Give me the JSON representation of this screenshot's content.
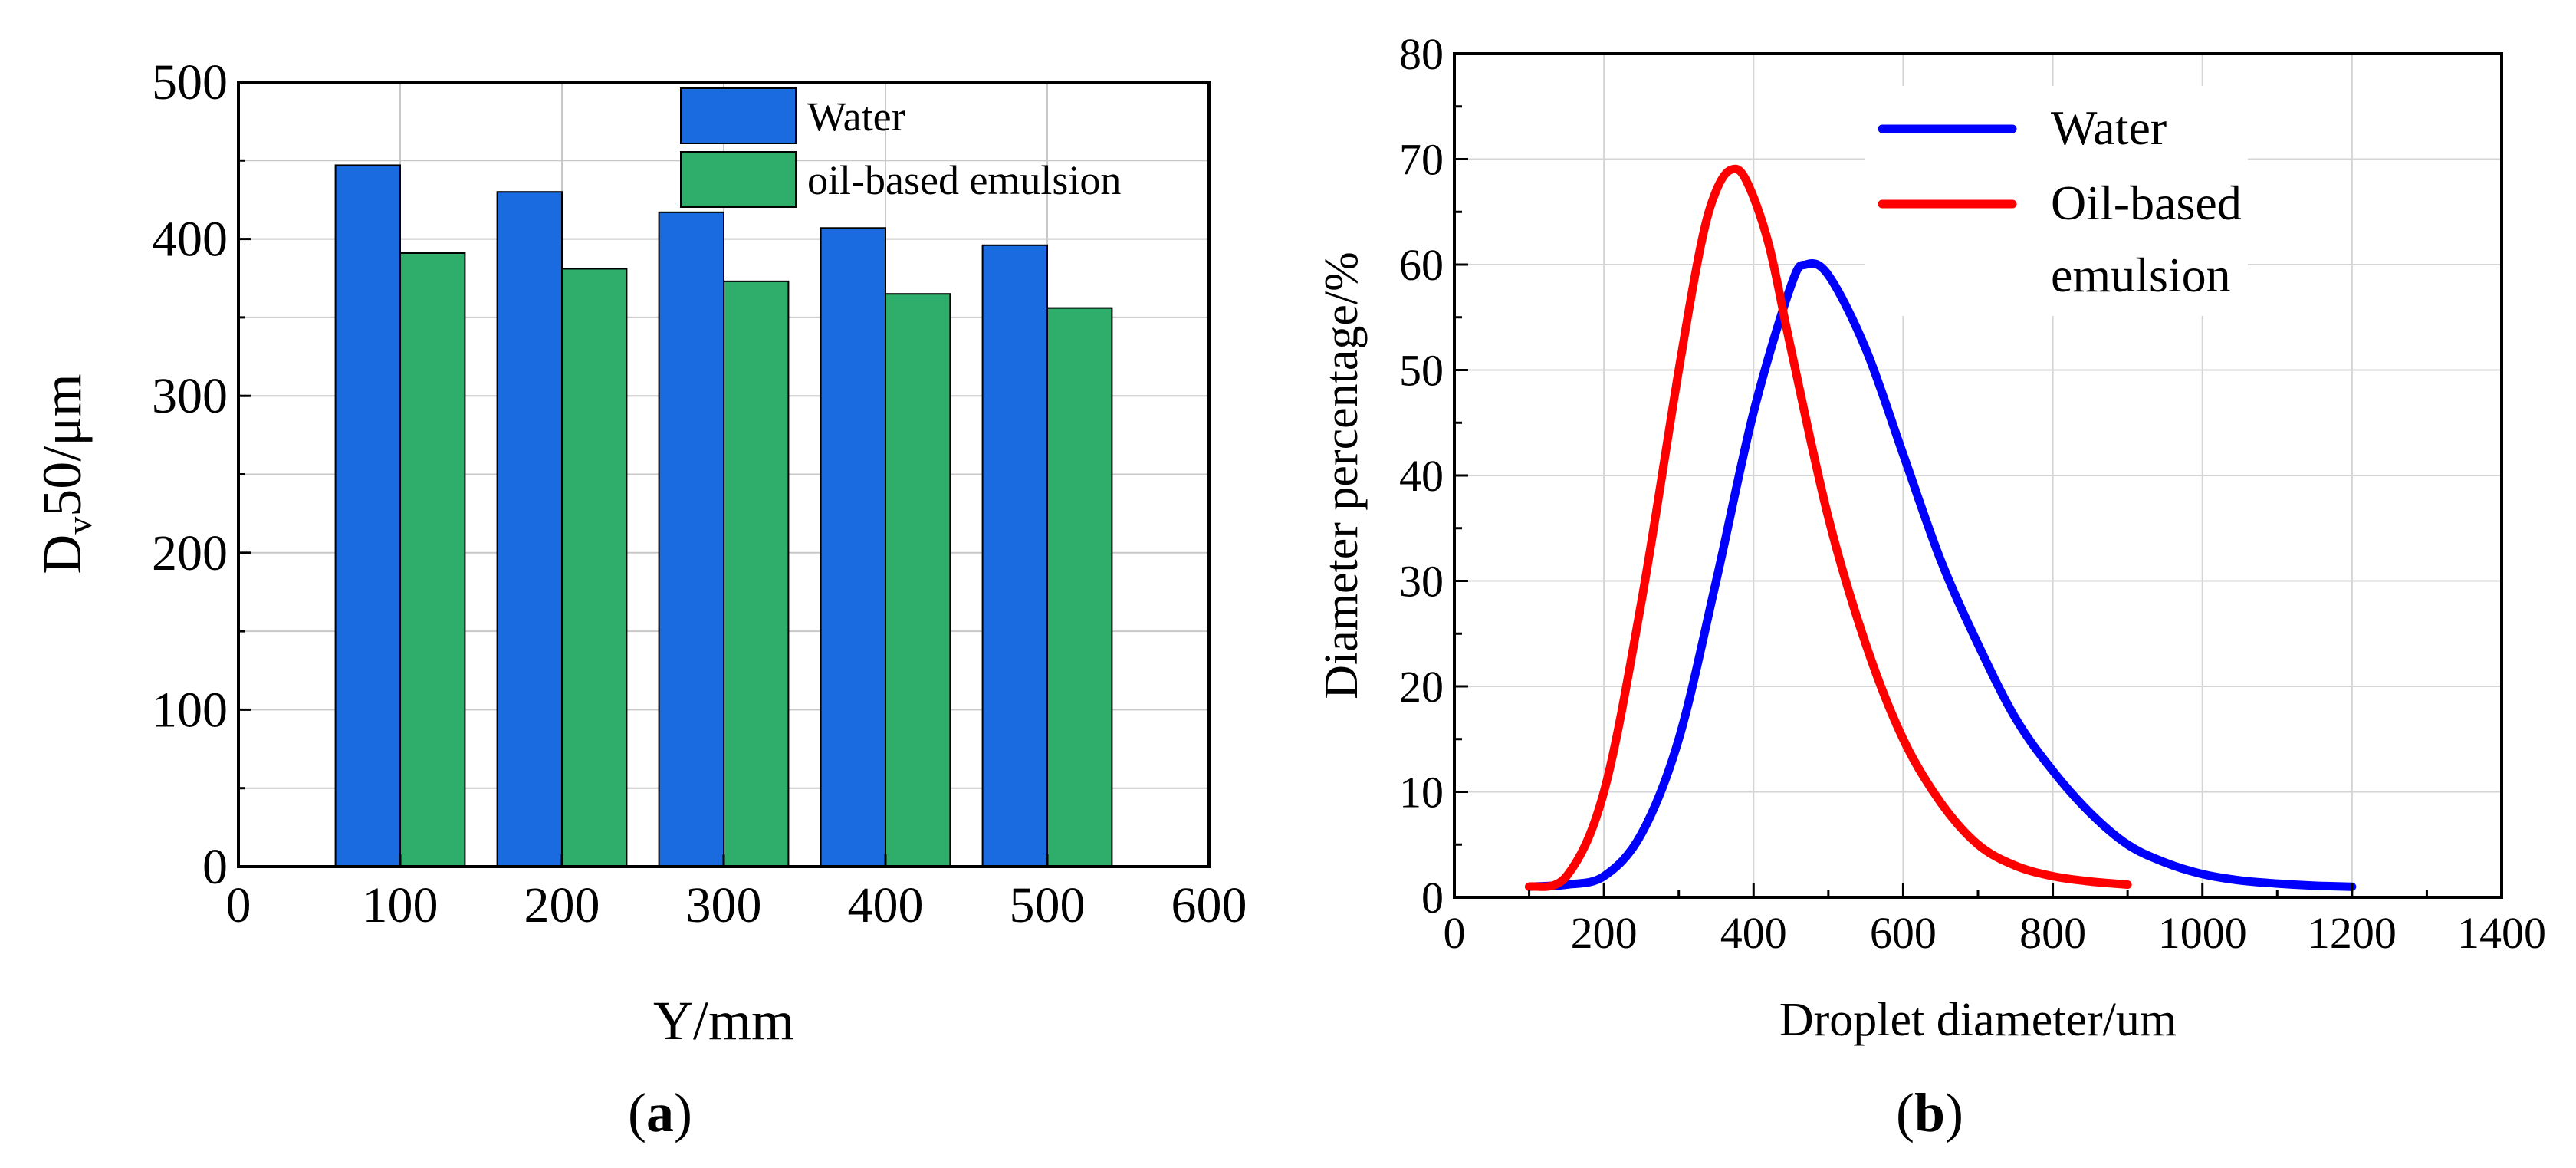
{
  "chart_data": [
    {
      "type": "bar",
      "panel_label": "a",
      "title": "",
      "xlabel": "Y/mm",
      "ylabel_main": "D",
      "ylabel_sub": "v",
      "ylabel_rest": "50/μm",
      "xlim": [
        0,
        600
      ],
      "ylim": [
        0,
        500
      ],
      "xticks": [
        "0",
        "100",
        "200",
        "300",
        "400",
        "500",
        "600"
      ],
      "yticks": [
        "0",
        "100",
        "200",
        "300",
        "400",
        "500"
      ],
      "categories": [
        100,
        200,
        300,
        400,
        500
      ],
      "grid": true,
      "legend_position": "top-right",
      "series": [
        {
          "name": "Water",
          "color": "#1a6be0",
          "values": [
            447,
            430,
            417,
            407,
            396
          ]
        },
        {
          "name": "oil-based emulsion",
          "color": "#2fae6b",
          "values": [
            391,
            381,
            373,
            365,
            356
          ]
        }
      ]
    },
    {
      "type": "line",
      "panel_label": "b",
      "title": "",
      "xlabel": "Droplet diameter/um",
      "ylabel": "Diameter percentage/%",
      "xlim": [
        0,
        1400
      ],
      "ylim": [
        0,
        80
      ],
      "xticks": [
        "0",
        "200",
        "400",
        "600",
        "800",
        "1000",
        "1200",
        "1400"
      ],
      "yticks": [
        "0",
        "10",
        "20",
        "30",
        "40",
        "50",
        "60",
        "70",
        "80"
      ],
      "grid": true,
      "legend_position": "top-right",
      "series": [
        {
          "name": "Water",
          "color": "#0000ff",
          "x": [
            100,
            150,
            200,
            250,
            300,
            350,
            400,
            450,
            470,
            500,
            550,
            600,
            650,
            700,
            750,
            800,
            850,
            900,
            950,
            1000,
            1050,
            1100,
            1150,
            1200
          ],
          "y": [
            1,
            1.2,
            2,
            6,
            15,
            30,
            46,
            58,
            60,
            59,
            52,
            42,
            32,
            24,
            17,
            12,
            8,
            5,
            3.3,
            2.2,
            1.6,
            1.3,
            1.1,
            1
          ]
        },
        {
          "name": "Oil-based emulsion",
          "name_line1": "Oil-based",
          "name_line2": "emulsion",
          "color": "#ff0000",
          "x": [
            100,
            150,
            200,
            250,
            300,
            330,
            350,
            370,
            390,
            420,
            450,
            500,
            550,
            600,
            650,
            700,
            750,
            800,
            850,
            900
          ],
          "y": [
            1,
            2,
            10,
            28,
            50,
            62,
            67,
            69,
            68,
            62,
            52,
            36,
            24,
            15,
            9,
            5,
            3,
            2,
            1.5,
            1.2
          ]
        }
      ]
    }
  ]
}
